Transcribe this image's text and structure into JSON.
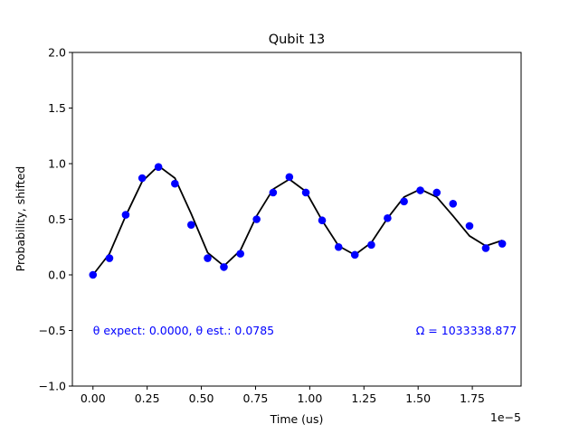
{
  "chart_data": {
    "type": "scatter",
    "title": "Qubit 13",
    "xlabel": "Time (us)",
    "ylabel": "Probability, shifted",
    "x_offset_label": "1e−5",
    "xlim": [
      -0.095,
      1.975
    ],
    "ylim": [
      -1.0,
      2.0
    ],
    "x_multiplier": 1e-05,
    "xticks": [
      {
        "value": 0.0,
        "label": "0.00"
      },
      {
        "value": 0.25,
        "label": "0.25"
      },
      {
        "value": 0.5,
        "label": "0.50"
      },
      {
        "value": 0.75,
        "label": "0.75"
      },
      {
        "value": 1.0,
        "label": "1.00"
      },
      {
        "value": 1.25,
        "label": "1.25"
      },
      {
        "value": 1.5,
        "label": "1.50"
      },
      {
        "value": 1.75,
        "label": "1.75"
      }
    ],
    "yticks": [
      {
        "value": -1.0,
        "label": "−1.0"
      },
      {
        "value": -0.5,
        "label": "−0.5"
      },
      {
        "value": 0.0,
        "label": "0.0"
      },
      {
        "value": 0.5,
        "label": "0.5"
      },
      {
        "value": 1.0,
        "label": "1.0"
      },
      {
        "value": 1.5,
        "label": "1.5"
      },
      {
        "value": 2.0,
        "label": "2.0"
      }
    ],
    "grid": false,
    "series": [
      {
        "kind": "points",
        "color": "#0000ff",
        "x": [
          0.0,
          0.076,
          0.151,
          0.227,
          0.302,
          0.378,
          0.453,
          0.529,
          0.604,
          0.68,
          0.755,
          0.831,
          0.906,
          0.982,
          1.057,
          1.133,
          1.208,
          1.284,
          1.359,
          1.435,
          1.51,
          1.586,
          1.661,
          1.737,
          1.812,
          1.888
        ],
        "y": [
          0.0,
          0.15,
          0.54,
          0.87,
          0.97,
          0.82,
          0.45,
          0.15,
          0.07,
          0.19,
          0.5,
          0.74,
          0.88,
          0.74,
          0.49,
          0.25,
          0.18,
          0.27,
          0.51,
          0.66,
          0.76,
          0.74,
          0.64,
          0.44,
          0.24,
          0.28
        ]
      },
      {
        "kind": "line",
        "color": "#000000",
        "x": [
          0.0,
          0.076,
          0.151,
          0.227,
          0.302,
          0.378,
          0.453,
          0.529,
          0.604,
          0.68,
          0.755,
          0.831,
          0.906,
          0.982,
          1.057,
          1.133,
          1.208,
          1.284,
          1.359,
          1.435,
          1.51,
          1.586,
          1.661,
          1.737,
          1.812,
          1.888
        ],
        "y": [
          0.0,
          0.19,
          0.53,
          0.84,
          0.98,
          0.87,
          0.55,
          0.2,
          0.08,
          0.22,
          0.53,
          0.77,
          0.86,
          0.75,
          0.49,
          0.26,
          0.18,
          0.29,
          0.51,
          0.7,
          0.77,
          0.7,
          0.53,
          0.35,
          0.26,
          0.31
        ]
      }
    ],
    "annotations": [
      {
        "text": "θ expect: 0.0000, θ est.: 0.0785",
        "x": 0.0,
        "y": -0.5,
        "anchor": "start"
      },
      {
        "text": "Ω = 1033338.877",
        "x": 1.49,
        "y": -0.5,
        "anchor": "start"
      }
    ]
  }
}
